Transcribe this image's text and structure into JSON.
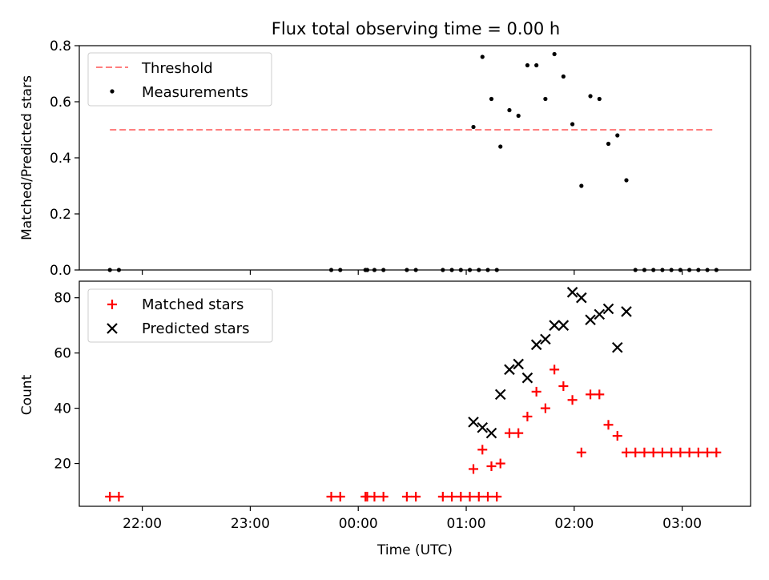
{
  "figure": {
    "title": "Flux total observing time = 0.00 h",
    "xlabel": "Time (UTC)"
  },
  "colors": {
    "threshold": "#ff7f7f",
    "measurements": "#000000",
    "matched": "#ff0000",
    "predicted": "#000000"
  },
  "chart_data": [
    {
      "type": "scatter",
      "ylabel": "Matched/Predicted stars",
      "xlim": [
        "21:25",
        "03:38"
      ],
      "ylim": [
        0,
        0.8
      ],
      "yticks": [
        "0.0",
        "0.2",
        "0.4",
        "0.6",
        "0.8"
      ],
      "xticks": [
        "22:00",
        "23:00",
        "00:00",
        "01:00",
        "02:00",
        "03:00"
      ],
      "legend": {
        "placement": "upper-left",
        "entries": [
          "Threshold",
          "Measurements"
        ]
      },
      "threshold": {
        "name": "Threshold",
        "y": 0.5,
        "x_start": "21:42",
        "x_end": "03:17"
      },
      "series": [
        {
          "name": "Measurements",
          "points": [
            [
              "21:42",
              0.0
            ],
            [
              "21:47",
              0.0
            ],
            [
              "23:45",
              0.0
            ],
            [
              "23:50",
              0.0
            ],
            [
              "00:04",
              0.0
            ],
            [
              "00:05",
              0.0
            ],
            [
              "00:09",
              0.0
            ],
            [
              "00:14",
              0.0
            ],
            [
              "00:27",
              0.0
            ],
            [
              "00:32",
              0.0
            ],
            [
              "00:47",
              0.0
            ],
            [
              "00:52",
              0.0
            ],
            [
              "00:57",
              0.0
            ],
            [
              "01:02",
              0.0
            ],
            [
              "01:07",
              0.0
            ],
            [
              "01:12",
              0.0
            ],
            [
              "01:17",
              0.0
            ],
            [
              "01:04",
              0.51
            ],
            [
              "01:09",
              0.76
            ],
            [
              "01:14",
              0.61
            ],
            [
              "01:19",
              0.44
            ],
            [
              "01:24",
              0.57
            ],
            [
              "01:29",
              0.55
            ],
            [
              "01:34",
              0.73
            ],
            [
              "01:39",
              0.73
            ],
            [
              "01:44",
              0.61
            ],
            [
              "01:49",
              0.77
            ],
            [
              "01:54",
              0.69
            ],
            [
              "01:59",
              0.52
            ],
            [
              "02:04",
              0.3
            ],
            [
              "02:09",
              0.62
            ],
            [
              "02:14",
              0.61
            ],
            [
              "02:19",
              0.45
            ],
            [
              "02:24",
              0.48
            ],
            [
              "02:29",
              0.32
            ],
            [
              "02:34",
              0.0
            ],
            [
              "02:39",
              0.0
            ],
            [
              "02:44",
              0.0
            ],
            [
              "02:49",
              0.0
            ],
            [
              "02:54",
              0.0
            ],
            [
              "02:59",
              0.0
            ],
            [
              "03:04",
              0.0
            ],
            [
              "03:09",
              0.0
            ],
            [
              "03:14",
              0.0
            ],
            [
              "03:19",
              0.0
            ]
          ]
        }
      ]
    },
    {
      "type": "scatter",
      "ylabel": "Count",
      "xlim": [
        "21:25",
        "03:38"
      ],
      "ylim": [
        4.5,
        86
      ],
      "yticks": [
        "20",
        "40",
        "60",
        "80"
      ],
      "xticks": [
        "22:00",
        "23:00",
        "00:00",
        "01:00",
        "02:00",
        "03:00"
      ],
      "legend": {
        "placement": "upper-left",
        "entries": [
          "Matched stars",
          "Predicted stars"
        ]
      },
      "series": [
        {
          "name": "Matched stars",
          "marker": "plus",
          "points": [
            [
              "21:42",
              8
            ],
            [
              "21:47",
              8
            ],
            [
              "23:45",
              8
            ],
            [
              "23:50",
              8
            ],
            [
              "00:04",
              8
            ],
            [
              "00:05",
              8
            ],
            [
              "00:09",
              8
            ],
            [
              "00:14",
              8
            ],
            [
              "00:27",
              8
            ],
            [
              "00:32",
              8
            ],
            [
              "00:47",
              8
            ],
            [
              "00:52",
              8
            ],
            [
              "00:57",
              8
            ],
            [
              "01:02",
              8
            ],
            [
              "01:07",
              8
            ],
            [
              "01:12",
              8
            ],
            [
              "01:17",
              8
            ],
            [
              "01:04",
              18
            ],
            [
              "01:09",
              25
            ],
            [
              "01:14",
              19
            ],
            [
              "01:19",
              20
            ],
            [
              "01:24",
              31
            ],
            [
              "01:29",
              31
            ],
            [
              "01:34",
              37
            ],
            [
              "01:39",
              46
            ],
            [
              "01:44",
              40
            ],
            [
              "01:49",
              54
            ],
            [
              "01:54",
              48
            ],
            [
              "01:59",
              43
            ],
            [
              "02:04",
              24
            ],
            [
              "02:09",
              45
            ],
            [
              "02:14",
              45
            ],
            [
              "02:19",
              34
            ],
            [
              "02:24",
              30
            ],
            [
              "02:29",
              24
            ],
            [
              "02:34",
              24
            ],
            [
              "02:39",
              24
            ],
            [
              "02:44",
              24
            ],
            [
              "02:49",
              24
            ],
            [
              "02:54",
              24
            ],
            [
              "02:59",
              24
            ],
            [
              "03:04",
              24
            ],
            [
              "03:09",
              24
            ],
            [
              "03:14",
              24
            ],
            [
              "03:19",
              24
            ]
          ]
        },
        {
          "name": "Predicted stars",
          "marker": "x",
          "points": [
            [
              "01:04",
              35
            ],
            [
              "01:09",
              33
            ],
            [
              "01:14",
              31
            ],
            [
              "01:19",
              45
            ],
            [
              "01:24",
              54
            ],
            [
              "01:29",
              56
            ],
            [
              "01:34",
              51
            ],
            [
              "01:39",
              63
            ],
            [
              "01:44",
              65
            ],
            [
              "01:49",
              70
            ],
            [
              "01:54",
              70
            ],
            [
              "01:59",
              82
            ],
            [
              "02:04",
              80
            ],
            [
              "02:09",
              72
            ],
            [
              "02:14",
              74
            ],
            [
              "02:19",
              76
            ],
            [
              "02:24",
              62
            ],
            [
              "02:29",
              75
            ]
          ]
        }
      ]
    }
  ]
}
